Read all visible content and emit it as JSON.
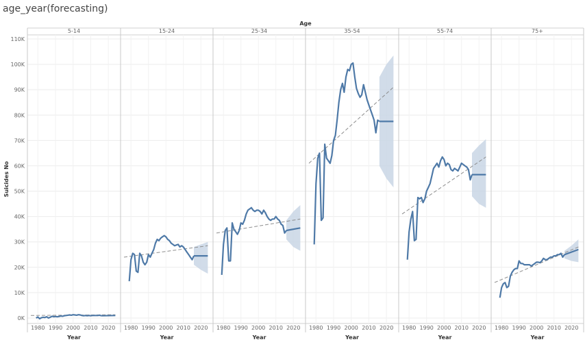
{
  "title": "age_year(forecasting)",
  "chart_data": {
    "type": "line",
    "column_header": "Age",
    "ylabel": "Suicides No",
    "xlabel": "Year",
    "ylim": [
      0,
      110000
    ],
    "yticks": [
      0,
      10000,
      20000,
      30000,
      40000,
      50000,
      60000,
      70000,
      80000,
      90000,
      100000,
      110000
    ],
    "ytick_labels": [
      "0K",
      "10K",
      "20K",
      "30K",
      "40K",
      "50K",
      "60K",
      "70K",
      "80K",
      "90K",
      "100K",
      "110K"
    ],
    "xlim": [
      1976,
      2025
    ],
    "xticks": [
      1980,
      1990,
      2000,
      2010,
      2020
    ],
    "xtick_labels": [
      "1980",
      "1990",
      "2000",
      "2010",
      "2020"
    ],
    "grid": true,
    "colors": {
      "line": "#4e79a7",
      "band": "#c9d6e5",
      "trend": "#8c8c8c",
      "divider": "#c8c8c8"
    },
    "panels": [
      {
        "name": "5-14",
        "actual": [
          [
            1979,
            0
          ],
          [
            1980,
            400
          ],
          [
            1981,
            -300
          ],
          [
            1982,
            100
          ],
          [
            1983,
            300
          ],
          [
            1984,
            200
          ],
          [
            1985,
            500
          ],
          [
            1986,
            0
          ],
          [
            1987,
            300
          ],
          [
            1988,
            700
          ],
          [
            1989,
            500
          ],
          [
            1990,
            600
          ],
          [
            1991,
            500
          ],
          [
            1992,
            600
          ],
          [
            1993,
            800
          ],
          [
            1994,
            700
          ],
          [
            1995,
            900
          ],
          [
            1996,
            1000
          ],
          [
            1997,
            1100
          ],
          [
            1998,
            1200
          ],
          [
            1999,
            1100
          ],
          [
            2000,
            1300
          ],
          [
            2001,
            1200
          ],
          [
            2002,
            1100
          ],
          [
            2003,
            1300
          ],
          [
            2004,
            1200
          ],
          [
            2005,
            1000
          ],
          [
            2006,
            900
          ],
          [
            2007,
            1000
          ],
          [
            2008,
            900
          ],
          [
            2009,
            1000
          ],
          [
            2010,
            900
          ],
          [
            2011,
            1000
          ],
          [
            2012,
            1000
          ],
          [
            2013,
            1000
          ],
          [
            2014,
            1000
          ],
          [
            2015,
            1100
          ],
          [
            2016,
            900
          ]
        ],
        "forecast": [
          [
            2016,
            900
          ],
          [
            2024,
            1000
          ]
        ],
        "band_upper": [],
        "band_lower": [],
        "trend": [
          [
            1976,
            1000
          ],
          [
            2024,
            1300
          ]
        ]
      },
      {
        "name": "15-24",
        "actual": [
          [
            1979,
            14500
          ],
          [
            1980,
            23000
          ],
          [
            1981,
            25500
          ],
          [
            1982,
            25000
          ],
          [
            1983,
            18500
          ],
          [
            1984,
            18000
          ],
          [
            1985,
            25500
          ],
          [
            1986,
            24500
          ],
          [
            1987,
            22000
          ],
          [
            1988,
            21000
          ],
          [
            1989,
            22000
          ],
          [
            1990,
            25000
          ],
          [
            1991,
            24000
          ],
          [
            1992,
            25500
          ],
          [
            1993,
            27000
          ],
          [
            1994,
            29500
          ],
          [
            1995,
            31000
          ],
          [
            1996,
            30500
          ],
          [
            1997,
            31500
          ],
          [
            1998,
            32000
          ],
          [
            1999,
            32500
          ],
          [
            2000,
            32000
          ],
          [
            2001,
            31000
          ],
          [
            2002,
            30500
          ],
          [
            2003,
            29500
          ],
          [
            2004,
            29000
          ],
          [
            2005,
            28500
          ],
          [
            2006,
            28800
          ],
          [
            2007,
            29000
          ],
          [
            2008,
            28000
          ],
          [
            2009,
            28500
          ],
          [
            2010,
            28000
          ],
          [
            2011,
            27000
          ],
          [
            2012,
            26000
          ],
          [
            2013,
            25000
          ],
          [
            2014,
            24000
          ],
          [
            2015,
            23000
          ],
          [
            2016,
            24500
          ]
        ],
        "forecast": [
          [
            2016,
            24500
          ],
          [
            2024,
            24500
          ]
        ],
        "band_upper": [
          [
            2016,
            28000
          ],
          [
            2020,
            29000
          ],
          [
            2024,
            30000
          ]
        ],
        "band_lower": [
          [
            2016,
            21000
          ],
          [
            2020,
            19000
          ],
          [
            2024,
            17500
          ]
        ],
        "trend": [
          [
            1976,
            24000
          ],
          [
            2024,
            28500
          ]
        ]
      },
      {
        "name": "25-34",
        "actual": [
          [
            1979,
            17000
          ],
          [
            1980,
            29000
          ],
          [
            1981,
            34500
          ],
          [
            1982,
            35500
          ],
          [
            1983,
            22500
          ],
          [
            1984,
            22500
          ],
          [
            1985,
            37500
          ],
          [
            1986,
            35000
          ],
          [
            1987,
            34000
          ],
          [
            1988,
            33000
          ],
          [
            1989,
            34500
          ],
          [
            1990,
            37500
          ],
          [
            1991,
            37000
          ],
          [
            1992,
            38500
          ],
          [
            1993,
            41000
          ],
          [
            1994,
            42500
          ],
          [
            1995,
            43000
          ],
          [
            1996,
            43500
          ],
          [
            1997,
            42500
          ],
          [
            1998,
            42000
          ],
          [
            1999,
            42500
          ],
          [
            2000,
            42500
          ],
          [
            2001,
            42000
          ],
          [
            2002,
            41000
          ],
          [
            2003,
            42500
          ],
          [
            2004,
            41500
          ],
          [
            2005,
            40000
          ],
          [
            2006,
            39000
          ],
          [
            2007,
            38500
          ],
          [
            2008,
            39000
          ],
          [
            2009,
            39000
          ],
          [
            2010,
            40000
          ],
          [
            2011,
            39000
          ],
          [
            2012,
            38500
          ],
          [
            2013,
            37000
          ],
          [
            2014,
            36500
          ],
          [
            2015,
            33500
          ],
          [
            2016,
            34500
          ]
        ],
        "forecast": [
          [
            2016,
            34500
          ],
          [
            2024,
            35500
          ]
        ],
        "band_upper": [
          [
            2016,
            38500
          ],
          [
            2020,
            42000
          ],
          [
            2024,
            44500
          ]
        ],
        "band_lower": [
          [
            2016,
            31000
          ],
          [
            2020,
            28000
          ],
          [
            2024,
            26500
          ]
        ],
        "trend": [
          [
            1976,
            33500
          ],
          [
            2024,
            39000
          ]
        ]
      },
      {
        "name": "35-54",
        "actual": [
          [
            1979,
            29000
          ],
          [
            1980,
            53000
          ],
          [
            1981,
            63000
          ],
          [
            1982,
            65000
          ],
          [
            1983,
            38500
          ],
          [
            1984,
            39500
          ],
          [
            1985,
            68500
          ],
          [
            1986,
            63000
          ],
          [
            1987,
            62000
          ],
          [
            1988,
            61000
          ],
          [
            1989,
            64000
          ],
          [
            1990,
            70000
          ],
          [
            1991,
            72000
          ],
          [
            1992,
            78000
          ],
          [
            1993,
            85000
          ],
          [
            1994,
            90000
          ],
          [
            1995,
            92500
          ],
          [
            1996,
            89000
          ],
          [
            1997,
            95000
          ],
          [
            1998,
            98000
          ],
          [
            1999,
            97500
          ],
          [
            2000,
            100000
          ],
          [
            2001,
            100500
          ],
          [
            2002,
            95000
          ],
          [
            2003,
            90500
          ],
          [
            2004,
            88500
          ],
          [
            2005,
            87000
          ],
          [
            2006,
            88000
          ],
          [
            2007,
            92000
          ],
          [
            2008,
            89000
          ],
          [
            2009,
            86000
          ],
          [
            2010,
            84000
          ],
          [
            2011,
            82000
          ],
          [
            2012,
            80000
          ],
          [
            2013,
            78000
          ],
          [
            2014,
            73000
          ],
          [
            2015,
            78000
          ],
          [
            2016,
            77500
          ]
        ],
        "forecast": [
          [
            2016,
            77500
          ],
          [
            2024,
            77500
          ]
        ],
        "band_upper": [
          [
            2016,
            95000
          ],
          [
            2020,
            100000
          ],
          [
            2024,
            103500
          ]
        ],
        "band_lower": [
          [
            2016,
            60000
          ],
          [
            2020,
            55000
          ],
          [
            2024,
            51500
          ]
        ],
        "trend": [
          [
            1976,
            61000
          ],
          [
            2024,
            91000
          ]
        ]
      },
      {
        "name": "55-74",
        "actual": [
          [
            1979,
            23000
          ],
          [
            1980,
            34000
          ],
          [
            1981,
            39000
          ],
          [
            1982,
            42000
          ],
          [
            1983,
            30500
          ],
          [
            1984,
            31000
          ],
          [
            1985,
            47500
          ],
          [
            1986,
            47000
          ],
          [
            1987,
            47500
          ],
          [
            1988,
            45500
          ],
          [
            1989,
            47000
          ],
          [
            1990,
            50000
          ],
          [
            1991,
            51500
          ],
          [
            1992,
            53000
          ],
          [
            1993,
            56000
          ],
          [
            1994,
            59000
          ],
          [
            1995,
            60000
          ],
          [
            1996,
            61000
          ],
          [
            1997,
            59500
          ],
          [
            1998,
            62000
          ],
          [
            1999,
            63500
          ],
          [
            2000,
            62500
          ],
          [
            2001,
            60000
          ],
          [
            2002,
            61000
          ],
          [
            2003,
            60500
          ],
          [
            2004,
            58500
          ],
          [
            2005,
            58000
          ],
          [
            2006,
            59000
          ],
          [
            2007,
            58500
          ],
          [
            2008,
            58000
          ],
          [
            2009,
            59500
          ],
          [
            2010,
            61000
          ],
          [
            2011,
            60500
          ],
          [
            2012,
            60000
          ],
          [
            2013,
            59500
          ],
          [
            2014,
            58500
          ],
          [
            2015,
            54500
          ],
          [
            2016,
            56500
          ]
        ],
        "forecast": [
          [
            2016,
            56500
          ],
          [
            2024,
            56500
          ]
        ],
        "band_upper": [
          [
            2016,
            65000
          ],
          [
            2020,
            68000
          ],
          [
            2024,
            70500
          ]
        ],
        "band_lower": [
          [
            2016,
            48000
          ],
          [
            2020,
            45000
          ],
          [
            2024,
            43500
          ]
        ],
        "trend": [
          [
            1976,
            41000
          ],
          [
            2024,
            63500
          ]
        ]
      },
      {
        "name": "75+",
        "actual": [
          [
            1979,
            8000
          ],
          [
            1980,
            12000
          ],
          [
            1981,
            13500
          ],
          [
            1982,
            14000
          ],
          [
            1983,
            12000
          ],
          [
            1984,
            12500
          ],
          [
            1985,
            16500
          ],
          [
            1986,
            18000
          ],
          [
            1987,
            19000
          ],
          [
            1988,
            19500
          ],
          [
            1989,
            19500
          ],
          [
            1990,
            22500
          ],
          [
            1991,
            21500
          ],
          [
            1992,
            21500
          ],
          [
            1993,
            21000
          ],
          [
            1994,
            21000
          ],
          [
            1995,
            21000
          ],
          [
            1996,
            21000
          ],
          [
            1997,
            20500
          ],
          [
            1998,
            21000
          ],
          [
            1999,
            21500
          ],
          [
            2000,
            22000
          ],
          [
            2001,
            22000
          ],
          [
            2002,
            21800
          ],
          [
            2003,
            22500
          ],
          [
            2004,
            23500
          ],
          [
            2005,
            23000
          ],
          [
            2006,
            23000
          ],
          [
            2007,
            23500
          ],
          [
            2008,
            24000
          ],
          [
            2009,
            24000
          ],
          [
            2010,
            24500
          ],
          [
            2011,
            24500
          ],
          [
            2012,
            25000
          ],
          [
            2013,
            25000
          ],
          [
            2014,
            25500
          ],
          [
            2015,
            24000
          ],
          [
            2016,
            25000
          ]
        ],
        "forecast": [
          [
            2016,
            25000
          ],
          [
            2024,
            27000
          ]
        ],
        "band_upper": [
          [
            2016,
            26500
          ],
          [
            2020,
            28500
          ],
          [
            2024,
            31000
          ]
        ],
        "band_lower": [
          [
            2016,
            23500
          ],
          [
            2020,
            22500
          ],
          [
            2024,
            22000
          ]
        ],
        "trend": [
          [
            1976,
            14000
          ],
          [
            2024,
            28000
          ]
        ]
      }
    ]
  }
}
